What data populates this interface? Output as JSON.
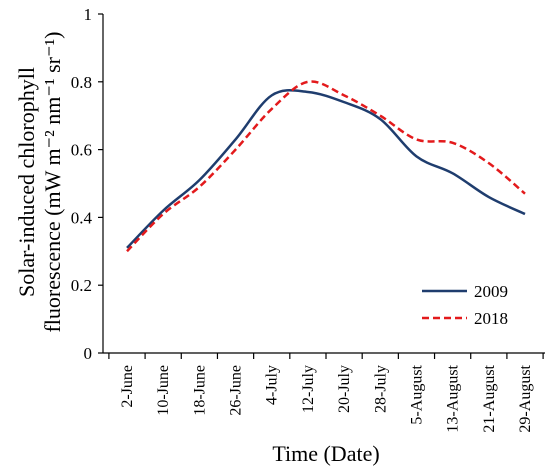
{
  "chart_data": {
    "type": "line",
    "xlabel": "Time (Date)",
    "ylabel_line1": "Solar-induced chlorophyll",
    "ylabel_line2": "fluorescence (mW m⁻² nm⁻¹ sr⁻¹)",
    "ylim": [
      0,
      1
    ],
    "yticks": [
      "0",
      "0.2",
      "0.4",
      "0.6",
      "0.8",
      "1"
    ],
    "ytick_values": [
      0,
      0.2,
      0.4,
      0.6,
      0.8,
      1
    ],
    "categories": [
      "2-June",
      "10-June",
      "18-June",
      "26-June",
      "4-July",
      "12-July",
      "20-July",
      "28-July",
      "5-August",
      "13-August",
      "21-August",
      "29-August"
    ],
    "grid": false,
    "legend_position": "bottom-right",
    "series": [
      {
        "name": "2009",
        "color": "#1f3d6e",
        "style": "solid",
        "values": [
          0.31,
          0.42,
          0.51,
          0.63,
          0.76,
          0.77,
          0.74,
          0.69,
          0.58,
          0.53,
          0.46,
          0.41
        ]
      },
      {
        "name": "2018",
        "color": "#e31a1c",
        "style": "dashed",
        "values": [
          0.3,
          0.41,
          0.49,
          0.6,
          0.72,
          0.8,
          0.76,
          0.7,
          0.63,
          0.62,
          0.56,
          0.47
        ]
      }
    ]
  }
}
